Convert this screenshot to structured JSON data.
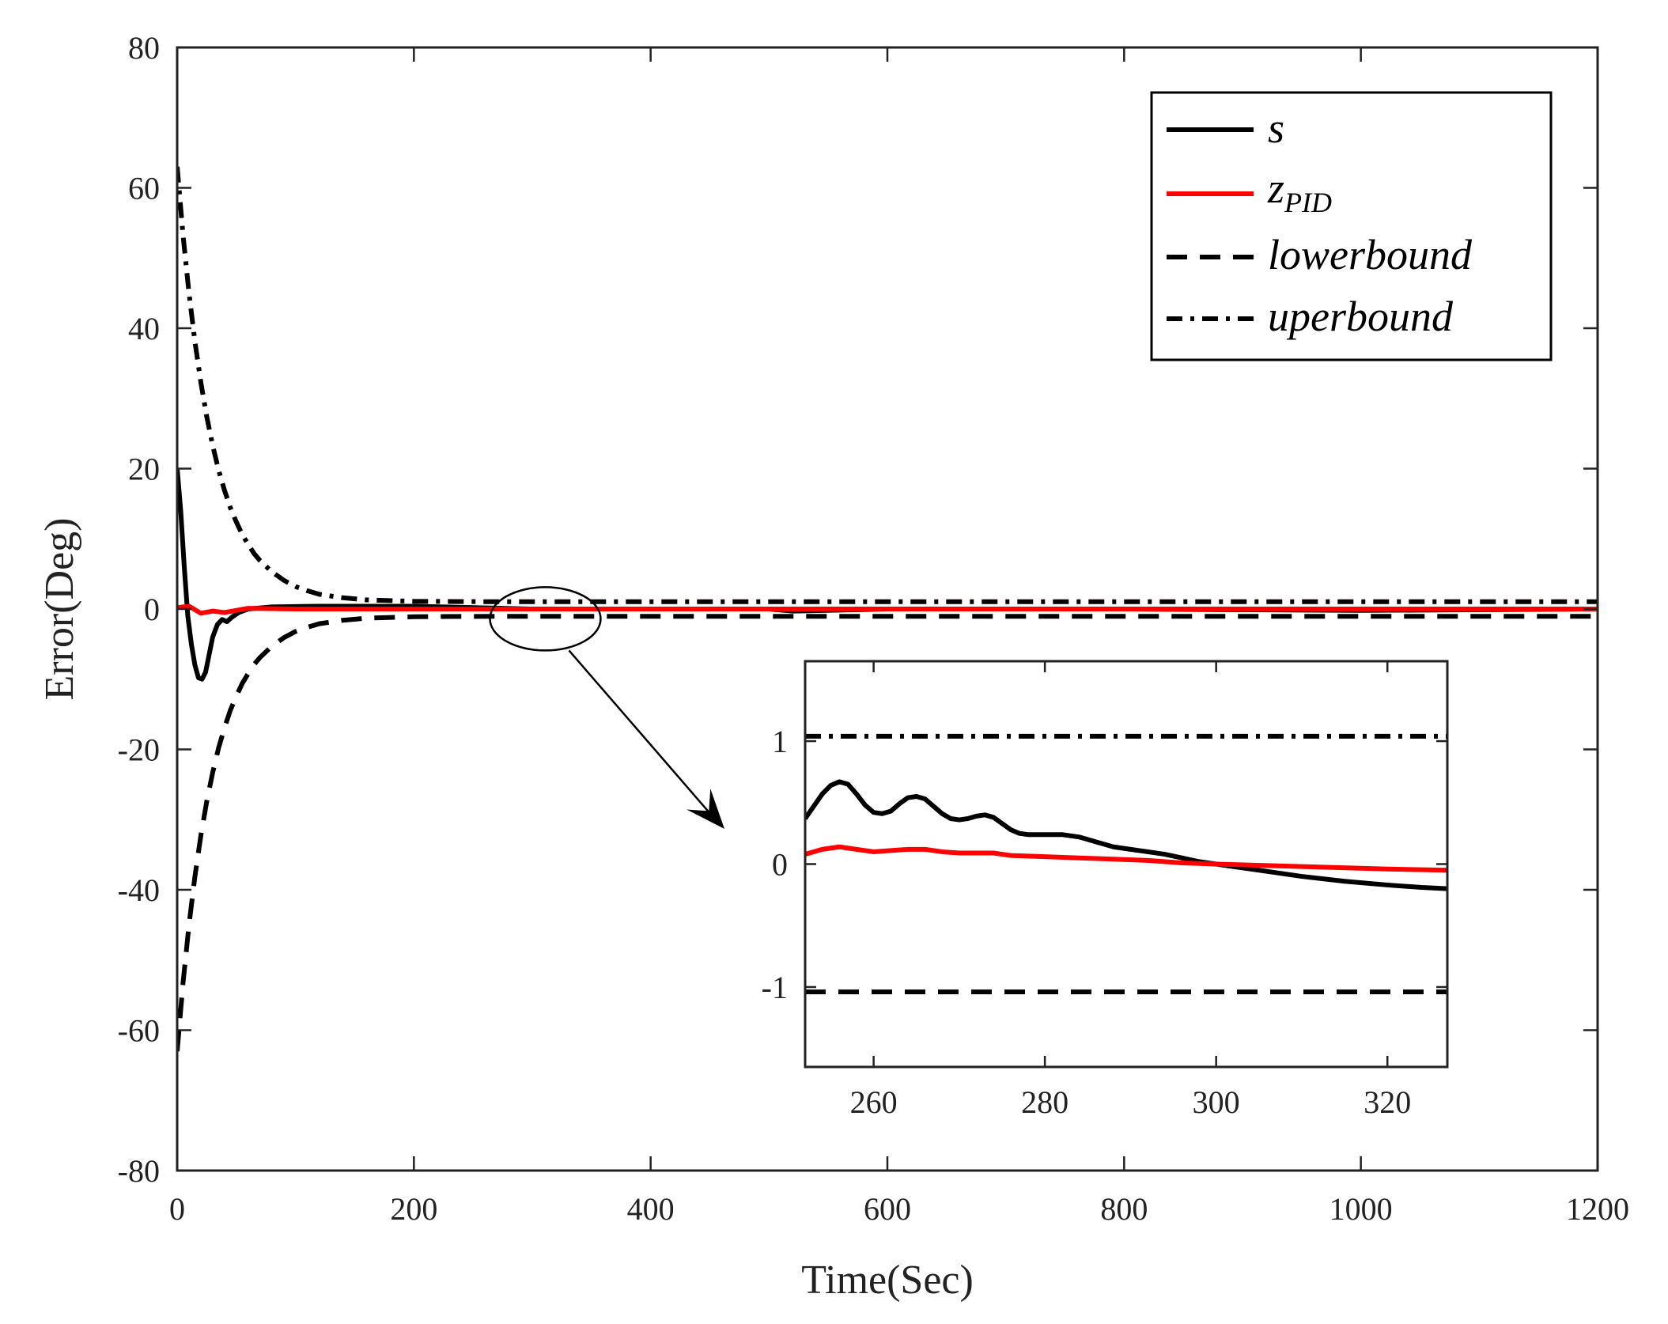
{
  "chart_data": [
    {
      "id": "main",
      "type": "line",
      "xlabel": "Time(Sec)",
      "ylabel": "Error(Deg)",
      "xlim": [
        0,
        1200
      ],
      "ylim": [
        -80,
        80
      ],
      "xticks": [
        0,
        200,
        400,
        600,
        800,
        1000,
        1200
      ],
      "yticks": [
        -80,
        -60,
        -40,
        -20,
        0,
        20,
        40,
        60,
        80
      ],
      "legend": {
        "position": "top-right",
        "entries": [
          {
            "key": "s",
            "main": "s",
            "sub": ""
          },
          {
            "key": "z",
            "main": "z",
            "sub": "PID"
          },
          {
            "key": "lower",
            "main": "lowerbound",
            "sub": ""
          },
          {
            "key": "upper",
            "main": "uperbound",
            "sub": ""
          }
        ]
      },
      "series": [
        {
          "name": "s",
          "color": "#000000",
          "style": "solid",
          "points": [
            [
              0,
              20
            ],
            [
              3,
              14
            ],
            [
              6,
              6
            ],
            [
              9,
              -1
            ],
            [
              12,
              -5
            ],
            [
              15,
              -8
            ],
            [
              18,
              -9.8
            ],
            [
              21,
              -10
            ],
            [
              24,
              -9
            ],
            [
              27,
              -6.5
            ],
            [
              30,
              -4
            ],
            [
              34,
              -2.2
            ],
            [
              38,
              -1.5
            ],
            [
              42,
              -1.8
            ],
            [
              46,
              -1.2
            ],
            [
              52,
              -0.5
            ],
            [
              60,
              0
            ],
            [
              80,
              0.3
            ],
            [
              120,
              0.4
            ],
            [
              200,
              0.4
            ],
            [
              300,
              0
            ],
            [
              500,
              0
            ],
            [
              520,
              -0.3
            ],
            [
              600,
              0
            ],
            [
              800,
              0
            ],
            [
              1000,
              -0.2
            ],
            [
              1200,
              0
            ]
          ]
        },
        {
          "name": "z_PID",
          "color": "#ff0000",
          "style": "solid",
          "points": [
            [
              0,
              0.2
            ],
            [
              10,
              0.4
            ],
            [
              20,
              -0.6
            ],
            [
              30,
              -0.3
            ],
            [
              40,
              -0.5
            ],
            [
              60,
              0.1
            ],
            [
              100,
              0
            ],
            [
              300,
              0
            ],
            [
              1200,
              0
            ]
          ]
        },
        {
          "name": "lowerbound",
          "color": "#000000",
          "style": "dashed",
          "points": [
            [
              0,
              -63
            ],
            [
              5,
              -53.2
            ],
            [
              10,
              -45
            ],
            [
              15,
              -38.1
            ],
            [
              20,
              -32.3
            ],
            [
              25,
              -27.4
            ],
            [
              30,
              -23.3
            ],
            [
              35,
              -19.8
            ],
            [
              40,
              -16.9
            ],
            [
              45,
              -14.4
            ],
            [
              50,
              -12.4
            ],
            [
              55,
              -10.6
            ],
            [
              60,
              -9.2
            ],
            [
              65,
              -7.9
            ],
            [
              70,
              -6.9
            ],
            [
              80,
              -5.3
            ],
            [
              90,
              -4.1
            ],
            [
              100,
              -3.2
            ],
            [
              110,
              -2.6
            ],
            [
              120,
              -2.1
            ],
            [
              140,
              -1.6
            ],
            [
              160,
              -1.3
            ],
            [
              200,
              -1.1
            ],
            [
              250,
              -1.05
            ],
            [
              300,
              -1.04
            ],
            [
              1200,
              -1.04
            ]
          ]
        },
        {
          "name": "uperbound",
          "color": "#000000",
          "style": "dashdot",
          "points": [
            [
              0,
              63
            ],
            [
              5,
              53.2
            ],
            [
              10,
              45
            ],
            [
              15,
              38.1
            ],
            [
              20,
              32.3
            ],
            [
              25,
              27.4
            ],
            [
              30,
              23.3
            ],
            [
              35,
              19.8
            ],
            [
              40,
              16.9
            ],
            [
              45,
              14.4
            ],
            [
              50,
              12.4
            ],
            [
              55,
              10.6
            ],
            [
              60,
              9.2
            ],
            [
              65,
              7.9
            ],
            [
              70,
              6.9
            ],
            [
              80,
              5.3
            ],
            [
              90,
              4.1
            ],
            [
              100,
              3.2
            ],
            [
              110,
              2.6
            ],
            [
              120,
              2.1
            ],
            [
              140,
              1.6
            ],
            [
              160,
              1.3
            ],
            [
              200,
              1.1
            ],
            [
              250,
              1.05
            ],
            [
              300,
              1.04
            ],
            [
              1200,
              1.04
            ]
          ]
        }
      ],
      "annotation": {
        "type": "ellipse-with-arrow",
        "center": [
          311,
          -1.4
        ],
        "to_inset": true
      }
    },
    {
      "id": "inset",
      "type": "line",
      "xlim": [
        252,
        327
      ],
      "ylim": [
        -1.65,
        1.65
      ],
      "xticks": [
        260,
        280,
        300,
        320
      ],
      "yticks": [
        -1,
        0,
        1
      ],
      "series": [
        {
          "name": "s",
          "color": "#000000",
          "style": "solid",
          "points": [
            [
              252,
              0.37
            ],
            [
              253,
              0.47
            ],
            [
              254,
              0.57
            ],
            [
              255,
              0.64
            ],
            [
              256,
              0.67
            ],
            [
              257,
              0.65
            ],
            [
              258,
              0.57
            ],
            [
              259,
              0.48
            ],
            [
              260,
              0.42
            ],
            [
              261,
              0.41
            ],
            [
              262,
              0.43
            ],
            [
              263,
              0.49
            ],
            [
              264,
              0.54
            ],
            [
              265,
              0.55
            ],
            [
              266,
              0.53
            ],
            [
              267,
              0.47
            ],
            [
              268,
              0.41
            ],
            [
              269,
              0.37
            ],
            [
              270,
              0.36
            ],
            [
              271,
              0.37
            ],
            [
              272,
              0.39
            ],
            [
              273,
              0.4
            ],
            [
              274,
              0.38
            ],
            [
              275,
              0.33
            ],
            [
              276,
              0.28
            ],
            [
              277,
              0.25
            ],
            [
              278,
              0.24
            ],
            [
              280,
              0.24
            ],
            [
              282,
              0.24
            ],
            [
              284,
              0.22
            ],
            [
              286,
              0.18
            ],
            [
              288,
              0.14
            ],
            [
              290,
              0.12
            ],
            [
              292,
              0.1
            ],
            [
              294,
              0.08
            ],
            [
              296,
              0.05
            ],
            [
              298,
              0.02
            ],
            [
              300,
              0
            ],
            [
              302,
              -0.02
            ],
            [
              306,
              -0.06
            ],
            [
              310,
              -0.1
            ],
            [
              315,
              -0.14
            ],
            [
              320,
              -0.17
            ],
            [
              324,
              -0.19
            ],
            [
              327,
              -0.2
            ]
          ]
        },
        {
          "name": "z_PID",
          "color": "#ff0000",
          "style": "solid",
          "points": [
            [
              252,
              0.08
            ],
            [
              254,
              0.12
            ],
            [
              256,
              0.14
            ],
            [
              258,
              0.12
            ],
            [
              260,
              0.1
            ],
            [
              262,
              0.11
            ],
            [
              264,
              0.12
            ],
            [
              266,
              0.12
            ],
            [
              268,
              0.1
            ],
            [
              270,
              0.09
            ],
            [
              272,
              0.09
            ],
            [
              274,
              0.09
            ],
            [
              276,
              0.07
            ],
            [
              280,
              0.06
            ],
            [
              284,
              0.05
            ],
            [
              288,
              0.04
            ],
            [
              292,
              0.03
            ],
            [
              296,
              0.01
            ],
            [
              300,
              0
            ],
            [
              310,
              -0.02
            ],
            [
              320,
              -0.04
            ],
            [
              327,
              -0.05
            ]
          ]
        },
        {
          "name": "lowerbound",
          "color": "#000000",
          "style": "dashed",
          "points": [
            [
              252,
              -1.04
            ],
            [
              327,
              -1.04
            ]
          ]
        },
        {
          "name": "uperbound",
          "color": "#000000",
          "style": "dashdot",
          "points": [
            [
              252,
              1.04
            ],
            [
              327,
              1.04
            ]
          ]
        }
      ]
    }
  ]
}
